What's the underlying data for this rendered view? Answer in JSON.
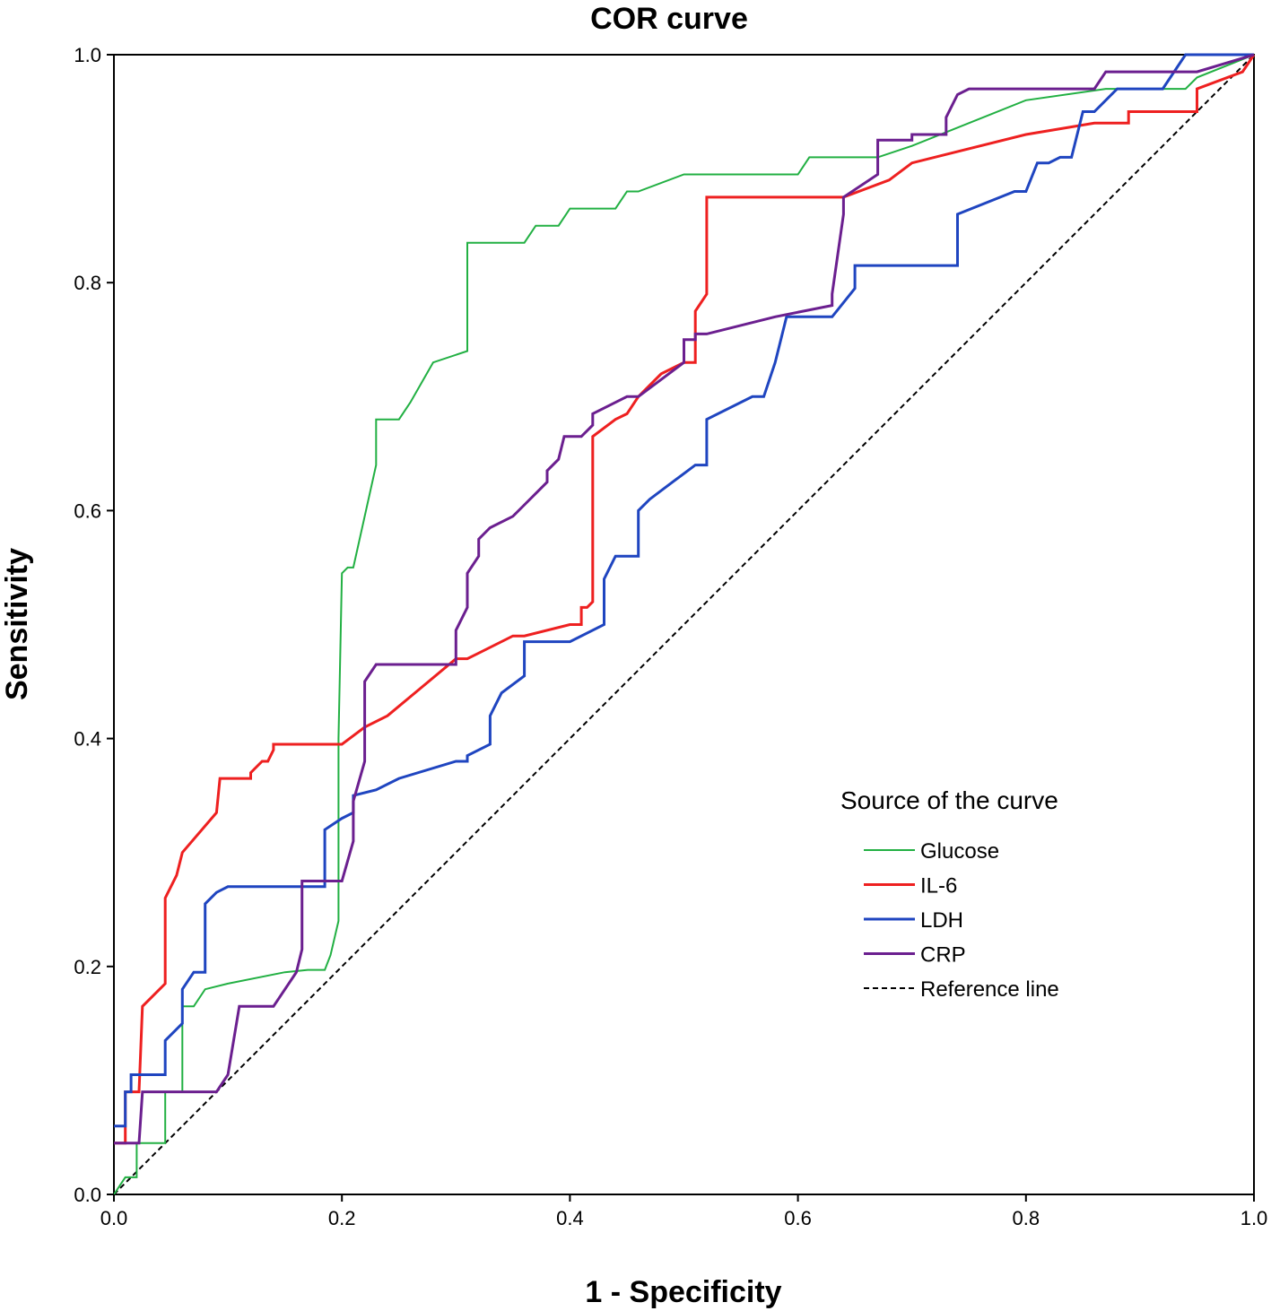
{
  "chart_data": {
    "type": "line",
    "title": "COR curve",
    "xlabel": "1 - Specificity",
    "ylabel": "Sensitivity",
    "xlim": [
      0,
      1
    ],
    "ylim": [
      0,
      1
    ],
    "xticks": [
      "0.0",
      "0.2",
      "0.4",
      "0.6",
      "0.8",
      "1.0"
    ],
    "yticks": [
      "0.0",
      "0.2",
      "0.4",
      "0.6",
      "0.8",
      "1.0"
    ],
    "legend": {
      "title": "Source of the curve",
      "position": "lower-right"
    },
    "series": [
      {
        "name": "Glucose",
        "color": "#22b043",
        "width": 2,
        "x": [
          0.0,
          0.01,
          0.02,
          0.02,
          0.045,
          0.045,
          0.06,
          0.06,
          0.07,
          0.08,
          0.1,
          0.15,
          0.17,
          0.185,
          0.19,
          0.197,
          0.197,
          0.2,
          0.2,
          0.205,
          0.21,
          0.23,
          0.23,
          0.25,
          0.26,
          0.28,
          0.31,
          0.31,
          0.36,
          0.37,
          0.39,
          0.4,
          0.44,
          0.45,
          0.46,
          0.5,
          0.6,
          0.61,
          0.67,
          0.7,
          0.8,
          0.87,
          0.94,
          0.95,
          1.0
        ],
        "y": [
          0.0,
          0.015,
          0.015,
          0.045,
          0.045,
          0.09,
          0.09,
          0.165,
          0.165,
          0.18,
          0.185,
          0.195,
          0.197,
          0.197,
          0.21,
          0.24,
          0.4,
          0.545,
          0.545,
          0.55,
          0.55,
          0.64,
          0.68,
          0.68,
          0.695,
          0.73,
          0.74,
          0.835,
          0.835,
          0.85,
          0.85,
          0.865,
          0.865,
          0.88,
          0.88,
          0.895,
          0.895,
          0.91,
          0.91,
          0.92,
          0.96,
          0.97,
          0.97,
          0.98,
          1.0
        ]
      },
      {
        "name": "IL-6",
        "color": "#ee2020",
        "width": 3,
        "x": [
          0.0,
          0.01,
          0.01,
          0.022,
          0.025,
          0.045,
          0.045,
          0.055,
          0.06,
          0.09,
          0.093,
          0.12,
          0.12,
          0.13,
          0.135,
          0.14,
          0.14,
          0.2,
          0.22,
          0.24,
          0.27,
          0.3,
          0.31,
          0.32,
          0.35,
          0.36,
          0.4,
          0.41,
          0.41,
          0.415,
          0.42,
          0.42,
          0.44,
          0.45,
          0.46,
          0.48,
          0.5,
          0.51,
          0.51,
          0.52,
          0.52,
          0.64,
          0.68,
          0.7,
          0.8,
          0.86,
          0.87,
          0.89,
          0.89,
          0.95,
          0.95,
          0.99,
          1.0
        ],
        "y": [
          0.045,
          0.045,
          0.09,
          0.09,
          0.165,
          0.185,
          0.26,
          0.28,
          0.3,
          0.335,
          0.365,
          0.365,
          0.37,
          0.38,
          0.38,
          0.39,
          0.395,
          0.395,
          0.41,
          0.42,
          0.445,
          0.47,
          0.47,
          0.475,
          0.49,
          0.49,
          0.5,
          0.5,
          0.515,
          0.515,
          0.52,
          0.665,
          0.68,
          0.685,
          0.7,
          0.72,
          0.73,
          0.73,
          0.775,
          0.79,
          0.875,
          0.875,
          0.89,
          0.905,
          0.93,
          0.94,
          0.94,
          0.94,
          0.95,
          0.95,
          0.97,
          0.985,
          1.0
        ]
      },
      {
        "name": "LDH",
        "color": "#1f45c0",
        "width": 3,
        "x": [
          0.0,
          0.01,
          0.01,
          0.015,
          0.015,
          0.045,
          0.045,
          0.06,
          0.06,
          0.07,
          0.08,
          0.08,
          0.09,
          0.1,
          0.16,
          0.185,
          0.185,
          0.2,
          0.21,
          0.21,
          0.23,
          0.25,
          0.3,
          0.31,
          0.31,
          0.33,
          0.33,
          0.34,
          0.36,
          0.36,
          0.4,
          0.43,
          0.43,
          0.44,
          0.46,
          0.46,
          0.47,
          0.49,
          0.51,
          0.52,
          0.52,
          0.56,
          0.57,
          0.58,
          0.59,
          0.63,
          0.65,
          0.65,
          0.74,
          0.74,
          0.79,
          0.8,
          0.81,
          0.82,
          0.83,
          0.84,
          0.85,
          0.86,
          0.87,
          0.88,
          0.92,
          0.94,
          0.97,
          1.0
        ],
        "y": [
          0.06,
          0.06,
          0.09,
          0.09,
          0.105,
          0.105,
          0.135,
          0.15,
          0.18,
          0.195,
          0.195,
          0.255,
          0.265,
          0.27,
          0.27,
          0.27,
          0.32,
          0.33,
          0.335,
          0.35,
          0.355,
          0.365,
          0.38,
          0.38,
          0.385,
          0.395,
          0.42,
          0.44,
          0.455,
          0.485,
          0.485,
          0.5,
          0.54,
          0.56,
          0.56,
          0.6,
          0.61,
          0.625,
          0.64,
          0.64,
          0.68,
          0.7,
          0.7,
          0.73,
          0.77,
          0.77,
          0.795,
          0.815,
          0.815,
          0.86,
          0.88,
          0.88,
          0.905,
          0.905,
          0.91,
          0.91,
          0.95,
          0.95,
          0.96,
          0.97,
          0.97,
          1.0,
          1.0,
          1.0
        ]
      },
      {
        "name": "CRP",
        "color": "#6b1f8f",
        "width": 3,
        "x": [
          0.0,
          0.022,
          0.025,
          0.025,
          0.09,
          0.1,
          0.1,
          0.11,
          0.11,
          0.14,
          0.16,
          0.165,
          0.165,
          0.2,
          0.21,
          0.21,
          0.22,
          0.22,
          0.23,
          0.3,
          0.3,
          0.31,
          0.31,
          0.32,
          0.32,
          0.33,
          0.35,
          0.36,
          0.37,
          0.38,
          0.38,
          0.39,
          0.395,
          0.41,
          0.42,
          0.42,
          0.44,
          0.45,
          0.46,
          0.5,
          0.5,
          0.51,
          0.51,
          0.52,
          0.58,
          0.63,
          0.63,
          0.64,
          0.64,
          0.67,
          0.67,
          0.7,
          0.7,
          0.73,
          0.73,
          0.74,
          0.75,
          0.86,
          0.87,
          0.89,
          0.95,
          1.0
        ],
        "y": [
          0.045,
          0.045,
          0.09,
          0.09,
          0.09,
          0.105,
          0.105,
          0.165,
          0.165,
          0.165,
          0.195,
          0.215,
          0.275,
          0.275,
          0.31,
          0.345,
          0.38,
          0.45,
          0.465,
          0.465,
          0.495,
          0.515,
          0.545,
          0.56,
          0.575,
          0.585,
          0.595,
          0.605,
          0.615,
          0.625,
          0.635,
          0.645,
          0.665,
          0.665,
          0.675,
          0.685,
          0.695,
          0.7,
          0.7,
          0.73,
          0.75,
          0.75,
          0.755,
          0.755,
          0.77,
          0.78,
          0.79,
          0.86,
          0.875,
          0.895,
          0.925,
          0.925,
          0.93,
          0.93,
          0.945,
          0.965,
          0.97,
          0.97,
          0.985,
          0.985,
          0.985,
          1.0
        ]
      },
      {
        "name": "Reference line",
        "color": "#000000",
        "width": 2,
        "dash": true,
        "x": [
          0,
          1
        ],
        "y": [
          0,
          1
        ]
      }
    ]
  }
}
